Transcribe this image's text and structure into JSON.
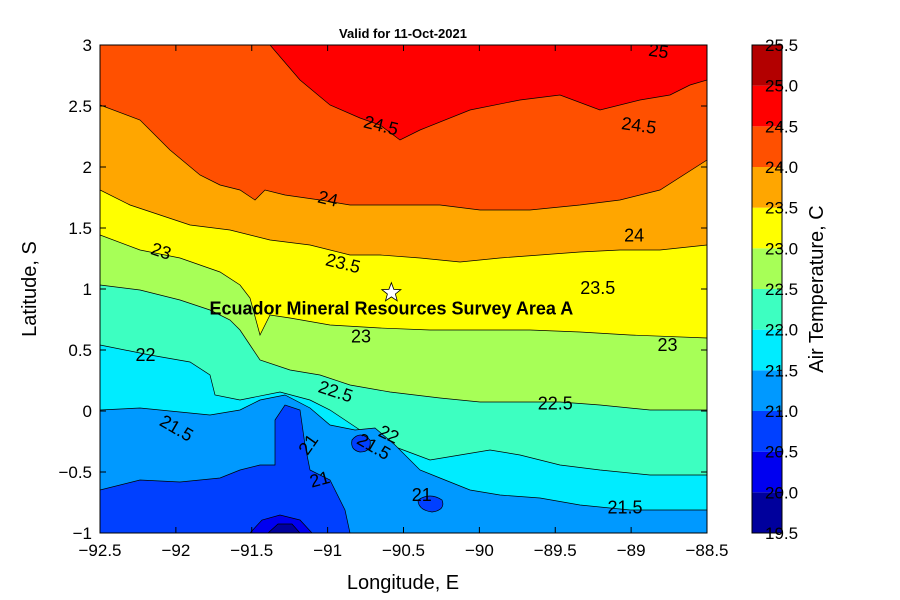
{
  "chart_data": {
    "type": "heatmap",
    "title": "Valid for 11-Oct-2021",
    "xlabel": "Longitude, E",
    "ylabel": "Latitude, S",
    "xlim": [
      -92.5,
      -88.5
    ],
    "ylim": [
      -1,
      3
    ],
    "x_ticks": [
      -92.5,
      -92,
      -91.5,
      -91,
      -90.5,
      -90,
      -89.5,
      -89,
      -88.5
    ],
    "x_tick_labels": [
      "−92.5",
      "−92",
      "−91.5",
      "−91",
      "−90.5",
      "−90",
      "−89.5",
      "−89",
      "−88.5"
    ],
    "y_ticks": [
      -1,
      -0.5,
      0,
      0.5,
      1,
      1.5,
      2,
      2.5,
      3
    ],
    "y_tick_labels": [
      "−1",
      "−0.5",
      "0",
      "0.5",
      "1",
      "1.5",
      "2",
      "2.5",
      "3"
    ],
    "contour_levels": [
      19.5,
      20.0,
      20.5,
      21.0,
      21.5,
      22.0,
      22.5,
      23.0,
      23.5,
      24.0,
      24.5,
      25.0,
      25.5
    ],
    "level_colors": [
      "#00009c",
      "#0000f0",
      "#0040ff",
      "#0099ff",
      "#00ecff",
      "#3dffc1",
      "#a7ff57",
      "#ffff00",
      "#ffa600",
      "#ff5000",
      "#ff0000",
      "#b30000"
    ],
    "contour_labels": [
      {
        "text": "25",
        "x": -88.82,
        "y": 2.94,
        "angle": 8
      },
      {
        "text": "24.5",
        "x": -90.65,
        "y": 2.33,
        "angle": 14
      },
      {
        "text": "24.5",
        "x": -88.95,
        "y": 2.33,
        "angle": 8
      },
      {
        "text": "24",
        "x": -91.0,
        "y": 1.73,
        "angle": 14
      },
      {
        "text": "24",
        "x": -88.98,
        "y": 1.43,
        "angle": 0
      },
      {
        "text": "23.5",
        "x": -90.9,
        "y": 1.2,
        "angle": 14
      },
      {
        "text": "23.5",
        "x": -89.22,
        "y": 1.0,
        "angle": 0
      },
      {
        "text": "23",
        "x": -92.1,
        "y": 1.3,
        "angle": 18
      },
      {
        "text": "23",
        "x": -90.78,
        "y": 0.6,
        "angle": 0
      },
      {
        "text": "23",
        "x": -88.76,
        "y": 0.53,
        "angle": 0
      },
      {
        "text": "22.5",
        "x": -90.95,
        "y": 0.15,
        "angle": 18
      },
      {
        "text": "22.5",
        "x": -89.5,
        "y": 0.05,
        "angle": 0
      },
      {
        "text": "22",
        "x": -92.2,
        "y": 0.45,
        "angle": 0
      },
      {
        "text": "22",
        "x": -90.6,
        "y": -0.2,
        "angle": 25
      },
      {
        "text": "21.5",
        "x": -92.0,
        "y": -0.15,
        "angle": 30
      },
      {
        "text": "21.5",
        "x": -90.7,
        "y": -0.3,
        "angle": 30
      },
      {
        "text": "21.5",
        "x": -89.04,
        "y": -0.8,
        "angle": 0
      },
      {
        "text": "21",
        "x": -91.12,
        "y": -0.28,
        "angle": -55
      },
      {
        "text": "21",
        "x": -91.05,
        "y": -0.57,
        "angle": -15
      },
      {
        "text": "21",
        "x": -90.38,
        "y": -0.7,
        "angle": 0
      }
    ],
    "annotation": {
      "text": "Ecuador Mineral Resources Survey Area A",
      "x": -90.58,
      "y": 0.94,
      "marker": "star",
      "marker_x": -90.58,
      "marker_y": 0.97
    },
    "colorbar": {
      "label": "Air Temperature, C",
      "range": [
        19.5,
        25.5
      ],
      "tick_values": [
        19.5,
        20.0,
        20.5,
        21.0,
        21.5,
        22.0,
        22.5,
        23.0,
        23.5,
        24.0,
        24.5,
        25.0,
        25.5
      ],
      "tick_labels": [
        "19.5",
        "20.0",
        "20.5",
        "21.0",
        "21.5",
        "22.0",
        "22.5",
        "23.0",
        "23.5",
        "24.0",
        "24.5",
        "25.0",
        "25.5"
      ]
    },
    "grid": false,
    "legend": "none"
  }
}
